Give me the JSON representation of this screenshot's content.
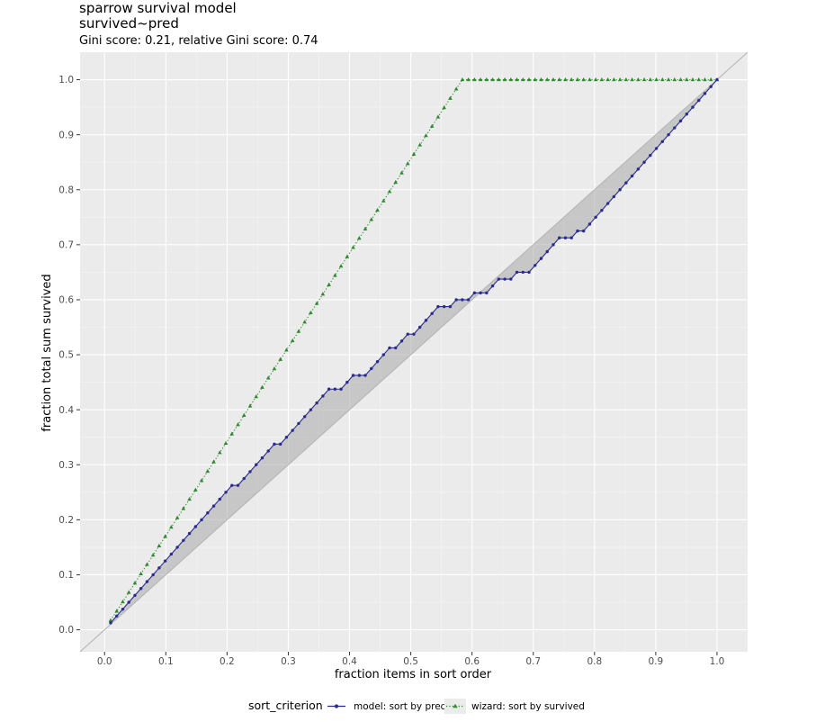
{
  "chart_data": {
    "type": "line",
    "title": "sparrow survival model",
    "subtitle": "survived~pred",
    "caption": "Gini score: 0.21, relative Gini score: 0.74",
    "xlabel": "fraction items in sort order",
    "ylabel": "fraction total sum survived",
    "xlim": [
      -0.04,
      1.05
    ],
    "ylim": [
      -0.04,
      1.05
    ],
    "x_ticks": [
      0.0,
      0.1,
      0.2,
      0.3,
      0.4,
      0.5,
      0.6,
      0.7,
      0.8,
      0.9,
      1.0
    ],
    "y_ticks": [
      0.0,
      0.1,
      0.2,
      0.3,
      0.4,
      0.5,
      0.6,
      0.7,
      0.8,
      0.9,
      1.0
    ],
    "x_tick_labels": [
      "0.0",
      "0.1",
      "0.2",
      "0.3",
      "0.4",
      "0.5",
      "0.6",
      "0.7",
      "0.8",
      "0.9",
      "1.0"
    ],
    "y_tick_labels": [
      "0.0",
      "0.1",
      "0.2",
      "0.3",
      "0.4",
      "0.5",
      "0.6",
      "0.7",
      "0.8",
      "0.9",
      "1.0"
    ],
    "n_items": 101,
    "wizard_reaches_one_at": 0.5842,
    "legend_title": "sort_criterion",
    "series": [
      {
        "name": "model: sort by pred",
        "color": "#2b2b8f",
        "marker": "circle",
        "line": "solid",
        "zero_steps": [
          22,
          29,
          38,
          39,
          42,
          43,
          48,
          51,
          56,
          57,
          59,
          60,
          62,
          63,
          66,
          67,
          69,
          70,
          76,
          77,
          79
        ]
      },
      {
        "name": "wizard: sort by survived",
        "color": "#2f8a2f",
        "marker": "triangle",
        "line": "dotted"
      }
    ],
    "reference_line": "diagonal y = x",
    "shaded_region": "between model curve and diagonal"
  }
}
